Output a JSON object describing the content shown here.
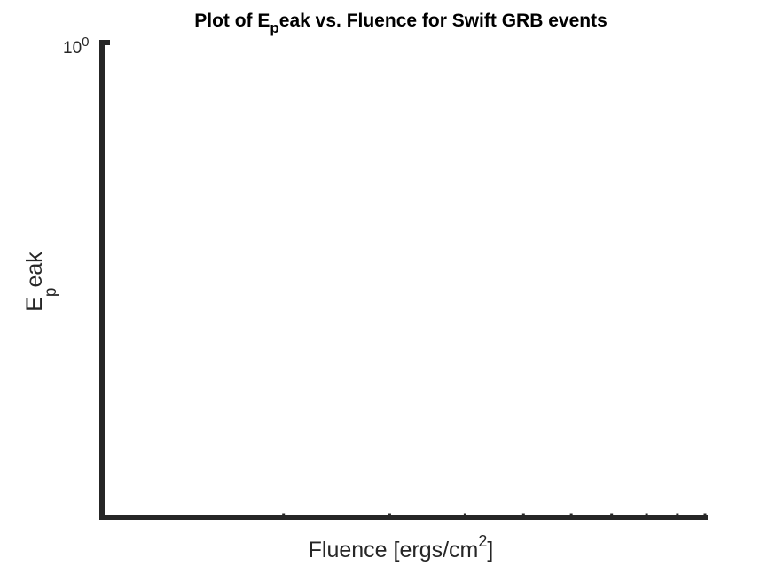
{
  "chart_data": {
    "type": "scatter",
    "title": {
      "prefix": "Plot of E",
      "sub": "p",
      "suffix": "eak vs. Fluence for Swift GRB events"
    },
    "xlabel": {
      "main": "Fluence [ergs/cm",
      "sup": "2",
      "end": "]"
    },
    "ylabel": {
      "main": "E",
      "sub": "p",
      "suffix": "eak"
    },
    "x_scale": "log",
    "y_scale": "log",
    "y_tick_labels": [
      {
        "base": "10",
        "exp": "0"
      }
    ],
    "x_tick_labels": [],
    "grid": false,
    "legend": "none",
    "series": [],
    "colors": {
      "axis": "#262626",
      "text": "#000000"
    }
  }
}
